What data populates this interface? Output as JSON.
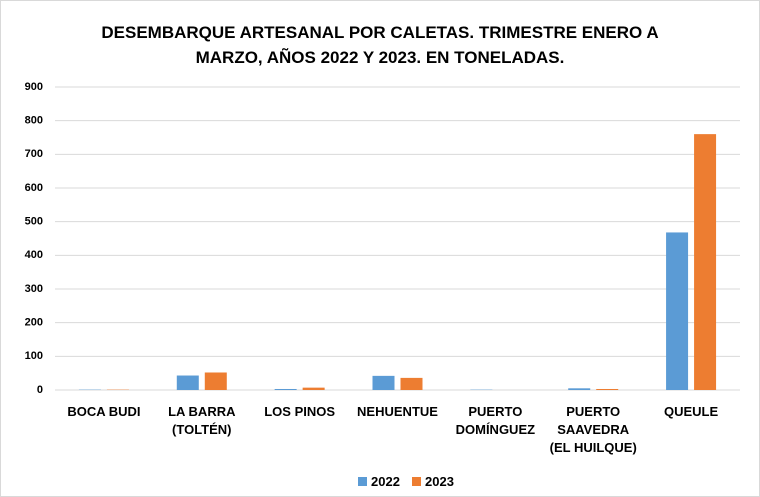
{
  "chart_data": {
    "type": "bar",
    "title": "DESEMBARQUE ARTESANAL POR CALETAS. TRIMESTRE ENERO A MARZO, AÑOS 2022 Y 2023. EN TONELADAS.",
    "categories": [
      "BOCA BUDI",
      "LA BARRA (TOLTÉN)",
      "LOS PINOS",
      "NEHUENTUE",
      "PUERTO DOMÍNGUEZ",
      "PUERTO SAAVEDRA (EL HUILQUE)",
      "QUEULE"
    ],
    "series": [
      {
        "name": "2022",
        "color": "#5b9bd5",
        "values": [
          1,
          43,
          3,
          42,
          1,
          5,
          468
        ]
      },
      {
        "name": "2023",
        "color": "#ed7d31",
        "values": [
          1,
          52,
          7,
          36,
          0,
          3,
          760
        ]
      }
    ],
    "ylim": [
      0,
      900
    ],
    "yticks": [
      0,
      100,
      200,
      300,
      400,
      500,
      600,
      700,
      800,
      900
    ],
    "grid": true,
    "legend": "bottom"
  }
}
